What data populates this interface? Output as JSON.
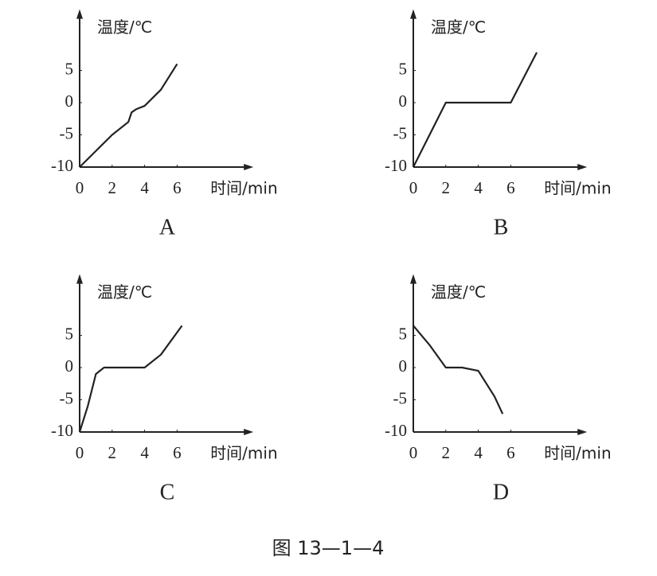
{
  "chart_data": [
    {
      "type": "line",
      "panel": "A",
      "ylabel": "温度/℃",
      "xlabel": "时间/min",
      "color": "#222222",
      "x": [
        0,
        1,
        2,
        3,
        3.2,
        3.5,
        4,
        5,
        6
      ],
      "values": [
        -10,
        -7.5,
        -5,
        -3,
        -1.5,
        -1,
        -0.5,
        2,
        6
      ],
      "xlim": [
        0,
        10.5
      ],
      "ylim": [
        -10,
        14
      ],
      "xticks": [
        0,
        2,
        4,
        6
      ],
      "yticks": [
        -10,
        -5,
        0,
        5
      ],
      "grid": false
    },
    {
      "type": "line",
      "panel": "B",
      "ylabel": "温度/℃",
      "xlabel": "时间/min",
      "color": "#222222",
      "x": [
        0,
        2,
        6,
        7.6
      ],
      "values": [
        -10,
        0,
        0,
        7.8
      ],
      "xlim": [
        0,
        10.5
      ],
      "ylim": [
        -10,
        14
      ],
      "xticks": [
        0,
        2,
        4,
        6
      ],
      "yticks": [
        -10,
        -5,
        0,
        5
      ],
      "grid": false
    },
    {
      "type": "line",
      "panel": "C",
      "ylabel": "温度/℃",
      "xlabel": "时间/min",
      "color": "#222222",
      "x": [
        0,
        0.5,
        1,
        1.5,
        4,
        5,
        6.3
      ],
      "values": [
        -10,
        -6,
        -1,
        0,
        0,
        2,
        6.5
      ],
      "xlim": [
        0,
        10.5
      ],
      "ylim": [
        -10,
        14
      ],
      "xticks": [
        0,
        2,
        4,
        6
      ],
      "yticks": [
        -10,
        -5,
        0,
        5
      ],
      "grid": false
    },
    {
      "type": "line",
      "panel": "D",
      "ylabel": "温度/℃",
      "xlabel": "时间/min",
      "color": "#222222",
      "x": [
        0,
        1,
        2,
        3,
        4,
        5,
        5.5
      ],
      "values": [
        6.5,
        3.5,
        0,
        0,
        -0.5,
        -4.5,
        -7.2
      ],
      "xlim": [
        0,
        10.5
      ],
      "ylim": [
        -10,
        14
      ],
      "xticks": [
        0,
        2,
        4,
        6
      ],
      "yticks": [
        -10,
        -5,
        0,
        5
      ],
      "grid": false
    }
  ],
  "caption": "图 13—1—4"
}
